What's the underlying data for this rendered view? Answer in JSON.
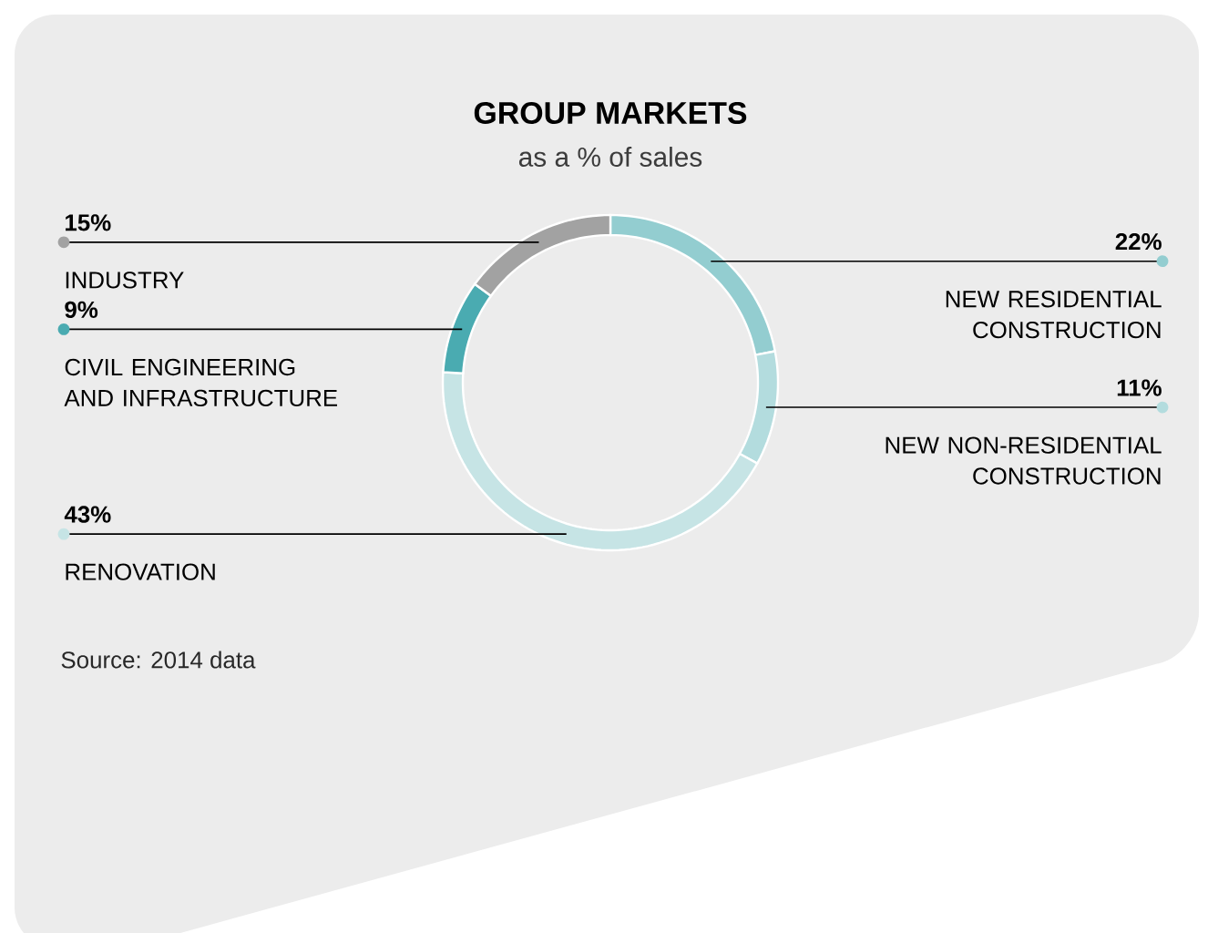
{
  "chart_data": {
    "type": "donut",
    "title": "GROUP MARKETS",
    "subtitle": "as a % of sales",
    "categories": [
      "NEW RESIDENTIAL CONSTRUCTION",
      "NEW NON-RESIDENTIAL CONSTRUCTION",
      "RENOVATION",
      "CIVIL ENGINEERING AND INFRASTRUCTURE",
      "INDUSTRY"
    ],
    "values": [
      22,
      11,
      43,
      9,
      15
    ],
    "value_labels": [
      "22%",
      "11%",
      "43%",
      "9%",
      "15%"
    ],
    "colors": [
      "#93cdd0",
      "#b3dcde",
      "#c6e4e5",
      "#4aabb1",
      "#a2a2a2"
    ],
    "annotations": [
      "Source: 2014 data"
    ],
    "legend": "left"
  }
}
